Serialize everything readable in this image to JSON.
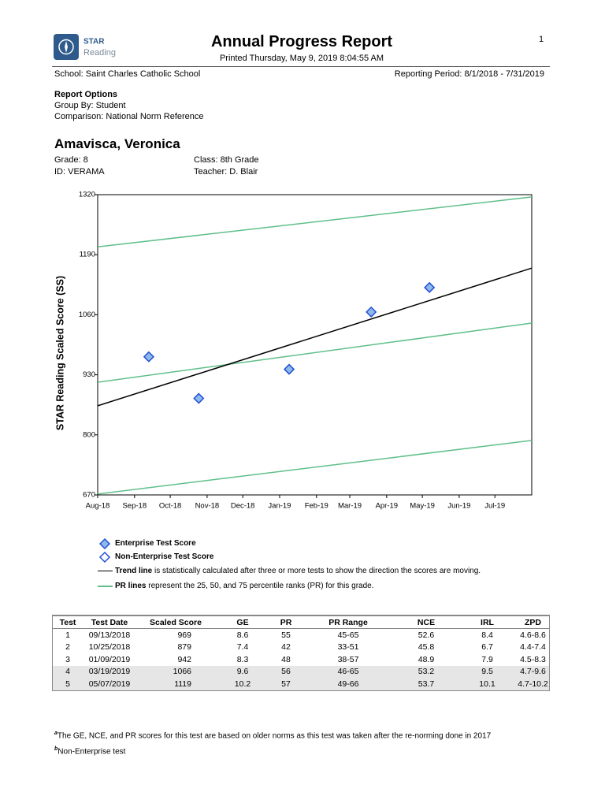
{
  "logo": {
    "brand": "STAR",
    "product": "Reading"
  },
  "header": {
    "title": "Annual Progress Report",
    "printed": "Printed Thursday, May 9, 2019 8:04:55 AM",
    "page": "1"
  },
  "school": "School: Saint Charles Catholic School",
  "reporting_period": "Reporting Period: 8/1/2018 - 7/31/2019",
  "report_options": {
    "title": "Report Options",
    "group_by": "Group By: Student",
    "comparison": "Comparison: National Norm Reference"
  },
  "student": {
    "name": "Amavisca, Veronica",
    "grade": "Grade: 8",
    "id": "ID: VERAMA",
    "class": "Class: 8th Grade",
    "teacher": "Teacher: D. Blair"
  },
  "chart_data": {
    "type": "scatter",
    "y_label": "STAR Reading Scaled Score (SS)",
    "xlim": [
      "2018-08",
      "2019-08"
    ],
    "xticks": [
      {
        "value": "2018-08",
        "label": "Aug-18"
      },
      {
        "value": "2018-09",
        "label": "Sep-18"
      },
      {
        "value": "2018-10",
        "label": "Oct-18"
      },
      {
        "value": "2018-11",
        "label": "Nov-18"
      },
      {
        "value": "2018-12",
        "label": "Dec-18"
      },
      {
        "value": "2019-01",
        "label": "Jan-19"
      },
      {
        "value": "2019-02",
        "label": "Feb-19"
      },
      {
        "value": "2019-03",
        "label": "Mar-19"
      },
      {
        "value": "2019-04",
        "label": "Apr-19"
      },
      {
        "value": "2019-05",
        "label": "May-19"
      },
      {
        "value": "2019-06",
        "label": "Jun-19"
      },
      {
        "value": "2019-07",
        "label": "Jul-19"
      }
    ],
    "ylim": [
      670,
      1320
    ],
    "yticks": [
      670,
      800,
      930,
      1060,
      1190,
      1320
    ],
    "series": [
      {
        "name": "Enterprise Test Score",
        "color": "#1f4fd1",
        "fill": "#8fb8ec",
        "x": [
          "2018-09-13",
          "2018-10-25",
          "2019-01-09",
          "2019-03-19",
          "2019-05-07"
        ],
        "values": [
          969,
          879,
          942,
          1066,
          1119
        ]
      },
      {
        "name": "Non-Enterprise Test Score",
        "color": "#1f4fd1",
        "fill": "#ffffff",
        "x": [],
        "values": []
      }
    ],
    "trend": {
      "name": "Trend line",
      "description": " is statistically calculated after three or more tests to show the direction the scores are moving.",
      "color": "#000000",
      "x": [
        "2018-08",
        "2019-08"
      ],
      "values": [
        863,
        1161
      ]
    },
    "pr_lines": {
      "name": "PR lines",
      "description": " represent the 25, 50, and 75 percentile ranks (PR) for this grade.",
      "color": "#5fbf8a",
      "lines": [
        {
          "x": [
            "2018-08",
            "2019-08"
          ],
          "values": [
            672,
            788
          ]
        },
        {
          "x": [
            "2018-08",
            "2019-08"
          ],
          "values": [
            914,
            1042
          ]
        },
        {
          "x": [
            "2018-08",
            "2019-08"
          ],
          "values": [
            1207,
            1315
          ]
        }
      ]
    }
  },
  "table": {
    "header": [
      "Test",
      "Test Date",
      "Scaled Score",
      "GE",
      "PR",
      "PR Range",
      "NCE",
      "IRL",
      "ZPD"
    ],
    "rows": [
      [
        "1",
        "09/13/2018",
        "969",
        "8.6",
        "55",
        "45-65",
        "52.6",
        "8.4",
        "4.6-8.6"
      ],
      [
        "2",
        "10/25/2018",
        "879",
        "7.4",
        "42",
        "33-51",
        "45.8",
        "6.7",
        "4.4-7.4"
      ],
      [
        "3",
        "01/09/2019",
        "942",
        "8.3",
        "48",
        "38-57",
        "48.9",
        "7.9",
        "4.5-8.3"
      ],
      [
        "4",
        "03/19/2019",
        "1066",
        "9.6",
        "56",
        "46-65",
        "53.2",
        "9.5",
        "4.7-9.6"
      ],
      [
        "5",
        "05/07/2019",
        "1119",
        "10.2",
        "57",
        "49-66",
        "53.7",
        "10.1",
        "4.7-10.2"
      ]
    ]
  },
  "footnotes": [
    {
      "marker": "a",
      "text": "The GE, NCE, and PR scores for this test are based on older norms as this test was taken after the re-norming done in 2017"
    },
    {
      "marker": "b",
      "text": "Non-Enterprise test"
    }
  ]
}
